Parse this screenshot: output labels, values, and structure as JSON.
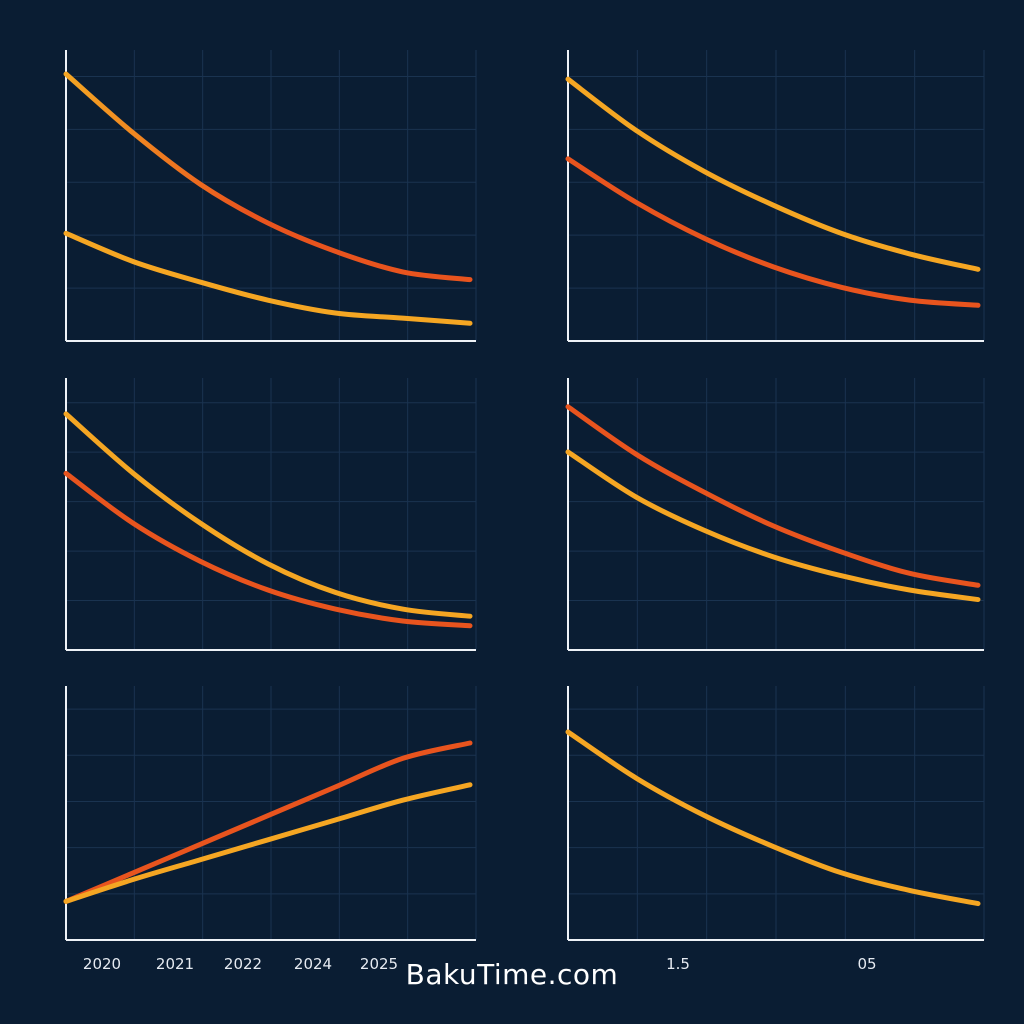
{
  "chart_data": [
    {
      "type": "line",
      "grid": true,
      "ylim": [
        0,
        100
      ],
      "x": [
        0,
        1,
        2,
        3,
        4,
        5,
        6
      ],
      "series": [
        {
          "color": "#f5a623",
          "values": [
            100,
            77,
            57,
            42,
            31,
            23,
            20
          ],
          "gradient_to": "#e8541e"
        },
        {
          "color": "#f5a623",
          "values": [
            38,
            27,
            19,
            12,
            7,
            5,
            3
          ]
        }
      ]
    },
    {
      "type": "line",
      "grid": true,
      "ylim": [
        0,
        100
      ],
      "x": [
        0,
        1,
        2,
        3,
        4,
        5,
        6
      ],
      "series": [
        {
          "color": "#f5a623",
          "values": [
            98,
            78,
            62,
            49,
            38,
            30,
            24
          ]
        },
        {
          "color": "#e8541e",
          "values": [
            67,
            50,
            36,
            25,
            17,
            12,
            10
          ]
        }
      ]
    },
    {
      "type": "line",
      "grid": true,
      "ylim": [
        0,
        100
      ],
      "x": [
        0,
        1,
        2,
        3,
        4,
        5,
        6
      ],
      "series": [
        {
          "color": "#f5a623",
          "values": [
            95,
            70,
            49,
            32,
            20,
            13,
            10
          ]
        },
        {
          "color": "#e8541e",
          "values": [
            70,
            49,
            33,
            21,
            13,
            8,
            6
          ]
        }
      ]
    },
    {
      "type": "line",
      "grid": true,
      "ylim": [
        0,
        100
      ],
      "x": [
        0,
        1,
        2,
        3,
        4,
        5,
        6
      ],
      "series": [
        {
          "color": "#e8541e",
          "values": [
            98,
            78,
            62,
            48,
            37,
            28,
            23
          ]
        },
        {
          "color": "#f5a623",
          "values": [
            79,
            60,
            46,
            35,
            27,
            21,
            17
          ]
        }
      ]
    },
    {
      "type": "line",
      "grid": true,
      "ylim": [
        0,
        100
      ],
      "x": [
        0,
        1,
        2,
        3,
        4,
        5,
        6
      ],
      "categories": [
        "2020",
        "2021",
        "2022",
        "2024",
        "2025"
      ],
      "series": [
        {
          "color": "#e8541e",
          "values": [
            13,
            26,
            39,
            52,
            65,
            78,
            85
          ]
        },
        {
          "color": "#f5a623",
          "values": [
            13,
            23,
            32,
            41,
            50,
            59,
            66
          ]
        }
      ]
    },
    {
      "type": "line",
      "grid": true,
      "ylim": [
        0,
        100
      ],
      "x": [
        0,
        1,
        2,
        3,
        4,
        5,
        6
      ],
      "categories": [
        "1.5",
        "05"
      ],
      "series": [
        {
          "color": "#f5a623",
          "values": [
            90,
            69,
            52,
            38,
            26,
            18,
            12
          ]
        }
      ]
    }
  ],
  "footer": {
    "watermark": "BakuTime.com"
  }
}
